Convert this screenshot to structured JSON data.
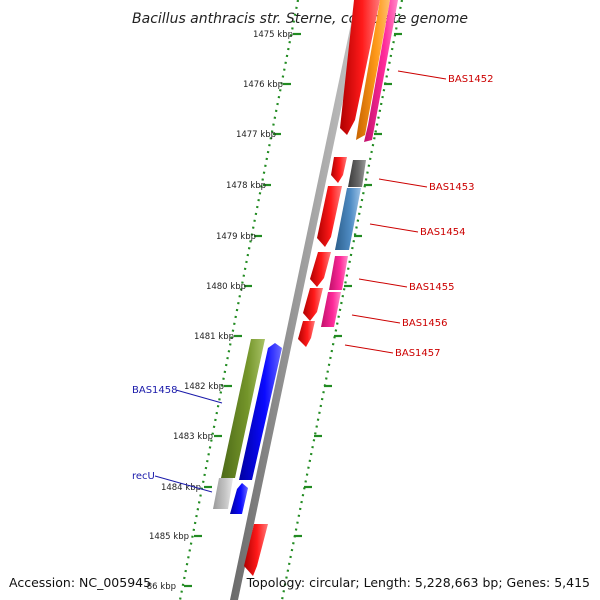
{
  "title": "Bacillus anthracis str. Sterne, complete genome",
  "footer": {
    "accession": "Accession: NC_005945",
    "topology": "Topology: circular; Length: 5,228,663 bp; Genes: 5,415"
  },
  "ticks": [
    "1475 kbp",
    "1476 kbp",
    "1477 kbp",
    "1478 kbp",
    "1479 kbp",
    "1480 kbp",
    "1481 kbp",
    "1482 kbp",
    "1483 kbp",
    "1484 kbp",
    "1485 kbp",
    "86 kbp"
  ],
  "gene_labels": [
    {
      "text": "BAS1452",
      "color": "#cc0000"
    },
    {
      "text": "BAS1453",
      "color": "#cc0000"
    },
    {
      "text": "BAS1454",
      "color": "#cc0000"
    },
    {
      "text": "BAS1455",
      "color": "#cc0000"
    },
    {
      "text": "BAS1456",
      "color": "#cc0000"
    },
    {
      "text": "BAS1457",
      "color": "#cc0000"
    },
    {
      "text": "BAS1458",
      "color": "#1a1aaa"
    },
    {
      "text": "recU",
      "color": "#1a1aaa"
    }
  ],
  "colors": {
    "backbone": "#888888",
    "tick_green": "#228B22",
    "cds_red": "#ff0000",
    "cds_orange": "#ff8c00",
    "cds_pink": "#ff1493",
    "cds_gray": "#666666",
    "cds_steelblue": "#4682b4",
    "cds_olive": "#6b8e23",
    "cds_blue": "#0000ee",
    "cds_lightgray": "#bbbbbb"
  }
}
